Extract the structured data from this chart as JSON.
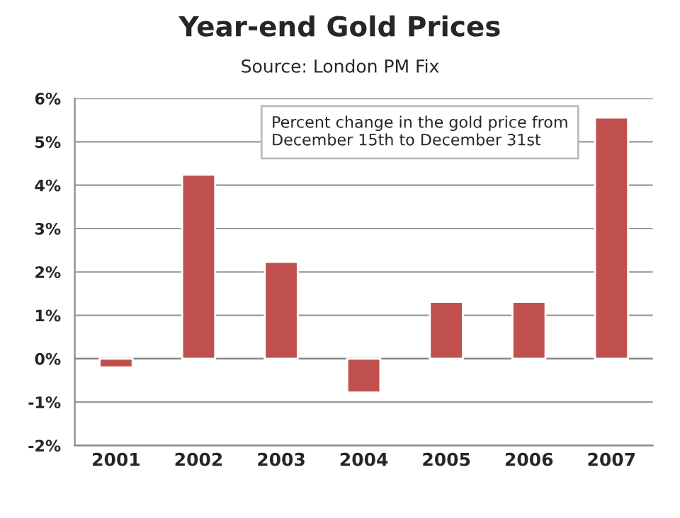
{
  "chart_data": {
    "type": "bar",
    "title": "Year-end Gold Prices",
    "subtitle": "Source: London PM Fix",
    "annotations": [
      "Percent change in the gold price from\nDecember 15th to December 31st"
    ],
    "categories": [
      "2001",
      "2002",
      "2003",
      "2004",
      "2005",
      "2006",
      "2007"
    ],
    "values": [
      -0.2,
      4.24,
      2.23,
      -0.78,
      1.31,
      1.31,
      5.56
    ],
    "color": "#c0504d",
    "ylim": [
      -2,
      6
    ],
    "yticks": [
      {
        "value": -2,
        "label": "-2%"
      },
      {
        "value": -1,
        "label": "-1%"
      },
      {
        "value": 0,
        "label": "0%"
      },
      {
        "value": 1,
        "label": "1%"
      },
      {
        "value": 2,
        "label": "2%"
      },
      {
        "value": 3,
        "label": "3%"
      },
      {
        "value": 4,
        "label": "4%"
      },
      {
        "value": 5,
        "label": "5%"
      },
      {
        "value": 6,
        "label": "6%"
      }
    ],
    "grid": "y",
    "legend": false
  }
}
